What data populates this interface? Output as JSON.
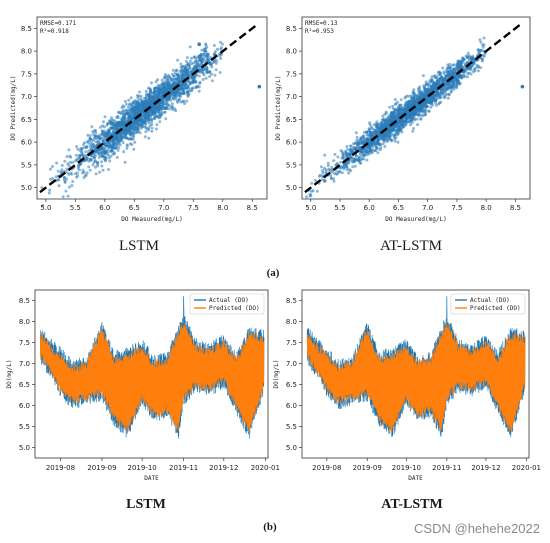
{
  "figure": {
    "subfig_a_label": "(a)",
    "subfig_b_label": "(b)",
    "watermark": "CSDN @hehehe2022",
    "colors": {
      "scatter": "#2b7bba",
      "actual": "#1f77b4",
      "predicted": "#ff7f0e",
      "diagonal": "#000000"
    }
  },
  "chart_data": [
    {
      "type": "scatter",
      "caption": "LSTM",
      "xlabel": "DO Measured(mg/L)",
      "ylabel": "DO Predicted(mg/L)",
      "annotation": [
        "RMSE=0.171",
        "R²=0.918"
      ],
      "xlim": [
        4.85,
        8.75
      ],
      "ylim": [
        4.75,
        8.75
      ],
      "xticks": [
        5.0,
        5.5,
        6.0,
        6.5,
        7.0,
        7.5,
        8.0,
        8.5
      ],
      "yticks": [
        5.0,
        5.5,
        6.0,
        6.5,
        7.0,
        7.5,
        8.0,
        8.5
      ],
      "diagonal": [
        [
          4.9,
          4.9
        ],
        [
          8.6,
          8.6
        ]
      ],
      "points_note": "dense cloud of ~3000 points along y = x, x from 4.9 to 8.0; outlier near (8.6, 7.2)",
      "outliers": [
        [
          8.62,
          7.22
        ],
        [
          7.6,
          8.15
        ]
      ],
      "cloud": {
        "xmin": 4.9,
        "xmax": 8.0,
        "spread": 0.17
      }
    },
    {
      "type": "scatter",
      "caption": "AT-LSTM",
      "xlabel": "DO Measured(mg/L)",
      "ylabel": "DO Predicted(mg/L)",
      "annotation": [
        "RMSE=0.13",
        "R²=0.953"
      ],
      "xlim": [
        4.85,
        8.75
      ],
      "ylim": [
        4.75,
        8.75
      ],
      "xticks": [
        5.0,
        5.5,
        6.0,
        6.5,
        7.0,
        7.5,
        8.0,
        8.5
      ],
      "yticks": [
        5.0,
        5.5,
        6.0,
        6.5,
        7.0,
        7.5,
        8.0,
        8.5
      ],
      "diagonal": [
        [
          4.9,
          4.9
        ],
        [
          8.6,
          8.6
        ]
      ],
      "outliers": [
        [
          8.62,
          7.22
        ]
      ],
      "cloud": {
        "xmin": 4.9,
        "xmax": 8.0,
        "spread": 0.13
      }
    },
    {
      "type": "line",
      "caption": "LSTM",
      "xlabel": "DATE",
      "ylabel": "DO(mg/L)",
      "series": [
        {
          "name": "Actual (DO)"
        },
        {
          "name": "Predicted (DO)"
        }
      ],
      "xticks": [
        "2019-08",
        "2019-09",
        "2019-10",
        "2019-11",
        "2019-12",
        "2020-01"
      ],
      "x_range": [
        "2019-07-17",
        "2019-12-31"
      ],
      "yticks": [
        5.0,
        5.5,
        6.0,
        6.5,
        7.0,
        7.5,
        8.0,
        8.5
      ],
      "ylim": [
        4.75,
        8.75
      ],
      "legend": "top-right",
      "envelope": {
        "dates": [
          "2019-07-17",
          "2019-07-25",
          "2019-08-01",
          "2019-08-10",
          "2019-08-20",
          "2019-09-01",
          "2019-09-10",
          "2019-09-20",
          "2019-10-01",
          "2019-10-10",
          "2019-10-20",
          "2019-10-28",
          "2019-11-01",
          "2019-11-10",
          "2019-11-20",
          "2019-12-01",
          "2019-12-10",
          "2019-12-20",
          "2019-12-31"
        ],
        "low": [
          7.0,
          6.6,
          6.2,
          5.9,
          6.0,
          6.1,
          5.5,
          5.2,
          6.0,
          5.6,
          5.7,
          5.2,
          6.0,
          6.3,
          6.2,
          6.4,
          5.8,
          5.2,
          6.3
        ],
        "high": [
          7.9,
          7.6,
          7.4,
          7.1,
          7.2,
          8.0,
          7.3,
          7.4,
          7.6,
          7.2,
          7.3,
          7.9,
          8.2,
          7.6,
          7.5,
          7.7,
          7.3,
          7.9,
          7.8
        ]
      },
      "spike": {
        "date": "2019-11-01",
        "value": 8.6
      }
    },
    {
      "type": "line",
      "caption": "AT-LSTM",
      "xlabel": "DATE",
      "ylabel": "DO(mg/L)",
      "series": [
        {
          "name": "Actual (DO)"
        },
        {
          "name": "Predicted (DO)"
        }
      ],
      "xticks": [
        "2019-08",
        "2019-09",
        "2019-10",
        "2019-11",
        "2019-12",
        "2020-01"
      ],
      "x_range": [
        "2019-07-17",
        "2019-12-31"
      ],
      "yticks": [
        5.0,
        5.5,
        6.0,
        6.5,
        7.0,
        7.5,
        8.0,
        8.5
      ],
      "ylim": [
        4.75,
        8.75
      ],
      "legend": "top-right",
      "envelope": {
        "dates": [
          "2019-07-17",
          "2019-07-25",
          "2019-08-01",
          "2019-08-10",
          "2019-08-20",
          "2019-09-01",
          "2019-09-10",
          "2019-09-20",
          "2019-10-01",
          "2019-10-10",
          "2019-10-20",
          "2019-10-28",
          "2019-11-01",
          "2019-11-10",
          "2019-11-20",
          "2019-12-01",
          "2019-12-10",
          "2019-12-20",
          "2019-12-31"
        ],
        "low": [
          7.0,
          6.6,
          6.2,
          5.9,
          6.0,
          6.1,
          5.5,
          5.2,
          6.0,
          5.6,
          5.7,
          5.2,
          6.0,
          6.3,
          6.2,
          6.4,
          5.8,
          5.2,
          6.3
        ],
        "high": [
          7.9,
          7.6,
          7.4,
          7.1,
          7.2,
          8.0,
          7.3,
          7.4,
          7.6,
          7.2,
          7.3,
          7.9,
          8.2,
          7.6,
          7.5,
          7.7,
          7.3,
          7.9,
          7.8
        ]
      },
      "spike": {
        "date": "2019-11-01",
        "value": 8.6
      }
    }
  ]
}
